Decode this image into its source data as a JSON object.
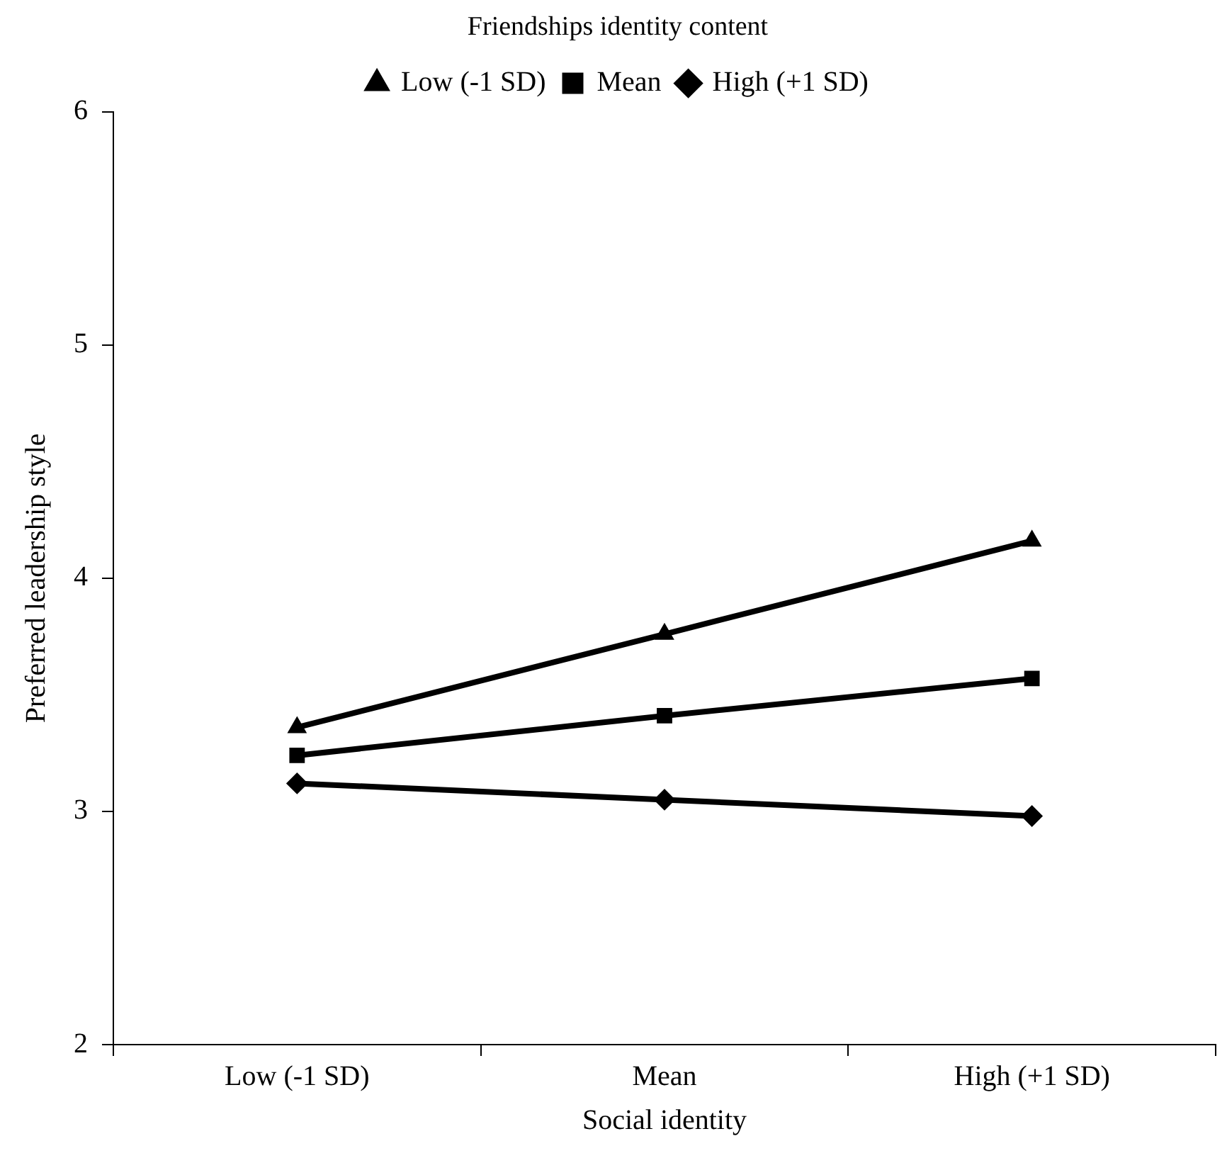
{
  "chart_data": {
    "type": "line",
    "title": "Friendships identity content",
    "xlabel": "Social identity",
    "ylabel": "Preferred leadership style",
    "categories": [
      "Low (-1 SD)",
      "Mean",
      "High (+1 SD)"
    ],
    "series": [
      {
        "name": "Low (-1 SD)",
        "color": "#000000",
        "marker": "triangle",
        "values": [
          3.36,
          3.76,
          4.16
        ]
      },
      {
        "name": "Mean",
        "color": "#000000",
        "marker": "square",
        "values": [
          3.24,
          3.41,
          3.57
        ]
      },
      {
        "name": "High (+1 SD)",
        "color": "#000000",
        "marker": "diamond",
        "values": [
          3.12,
          3.05,
          2.98
        ]
      }
    ],
    "ylim": [
      2,
      6
    ],
    "yticks": [
      2,
      3,
      4,
      5,
      6
    ],
    "grid": false,
    "legend": "top",
    "line_style": "solid"
  }
}
